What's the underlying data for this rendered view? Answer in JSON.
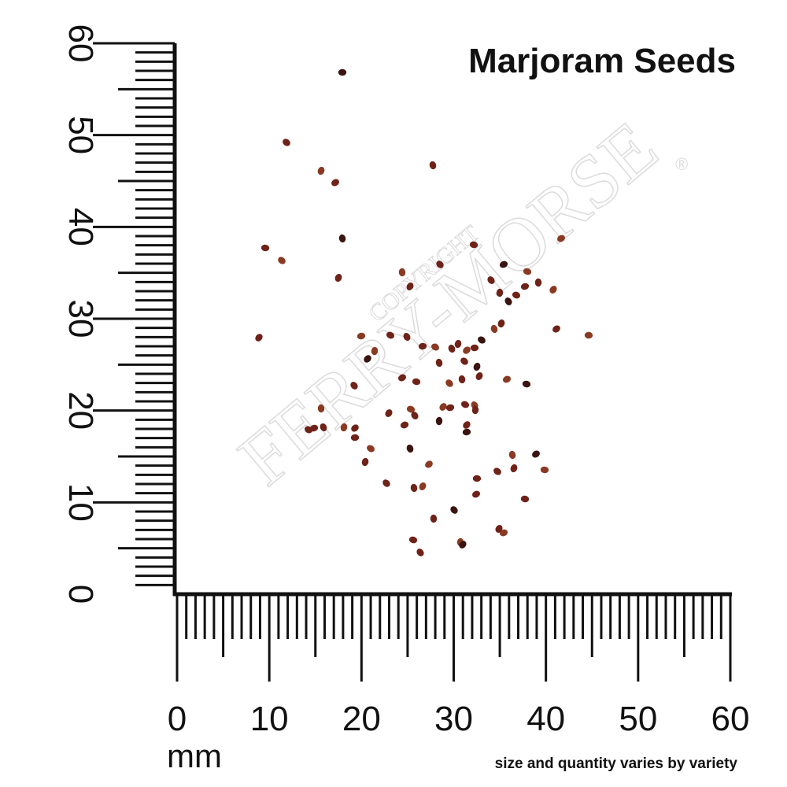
{
  "title": "Marjoram Seeds",
  "ruler": {
    "x_labels": [
      0,
      10,
      20,
      30,
      40,
      50,
      60
    ],
    "y_labels": [
      0,
      10,
      20,
      30,
      40,
      50,
      60
    ],
    "unit": "mm"
  },
  "note": "size and quantity varies by variety",
  "watermark": {
    "brand": "FERRY-MORSE",
    "copyright": "COPYRIGHT",
    "registered": "®"
  }
}
